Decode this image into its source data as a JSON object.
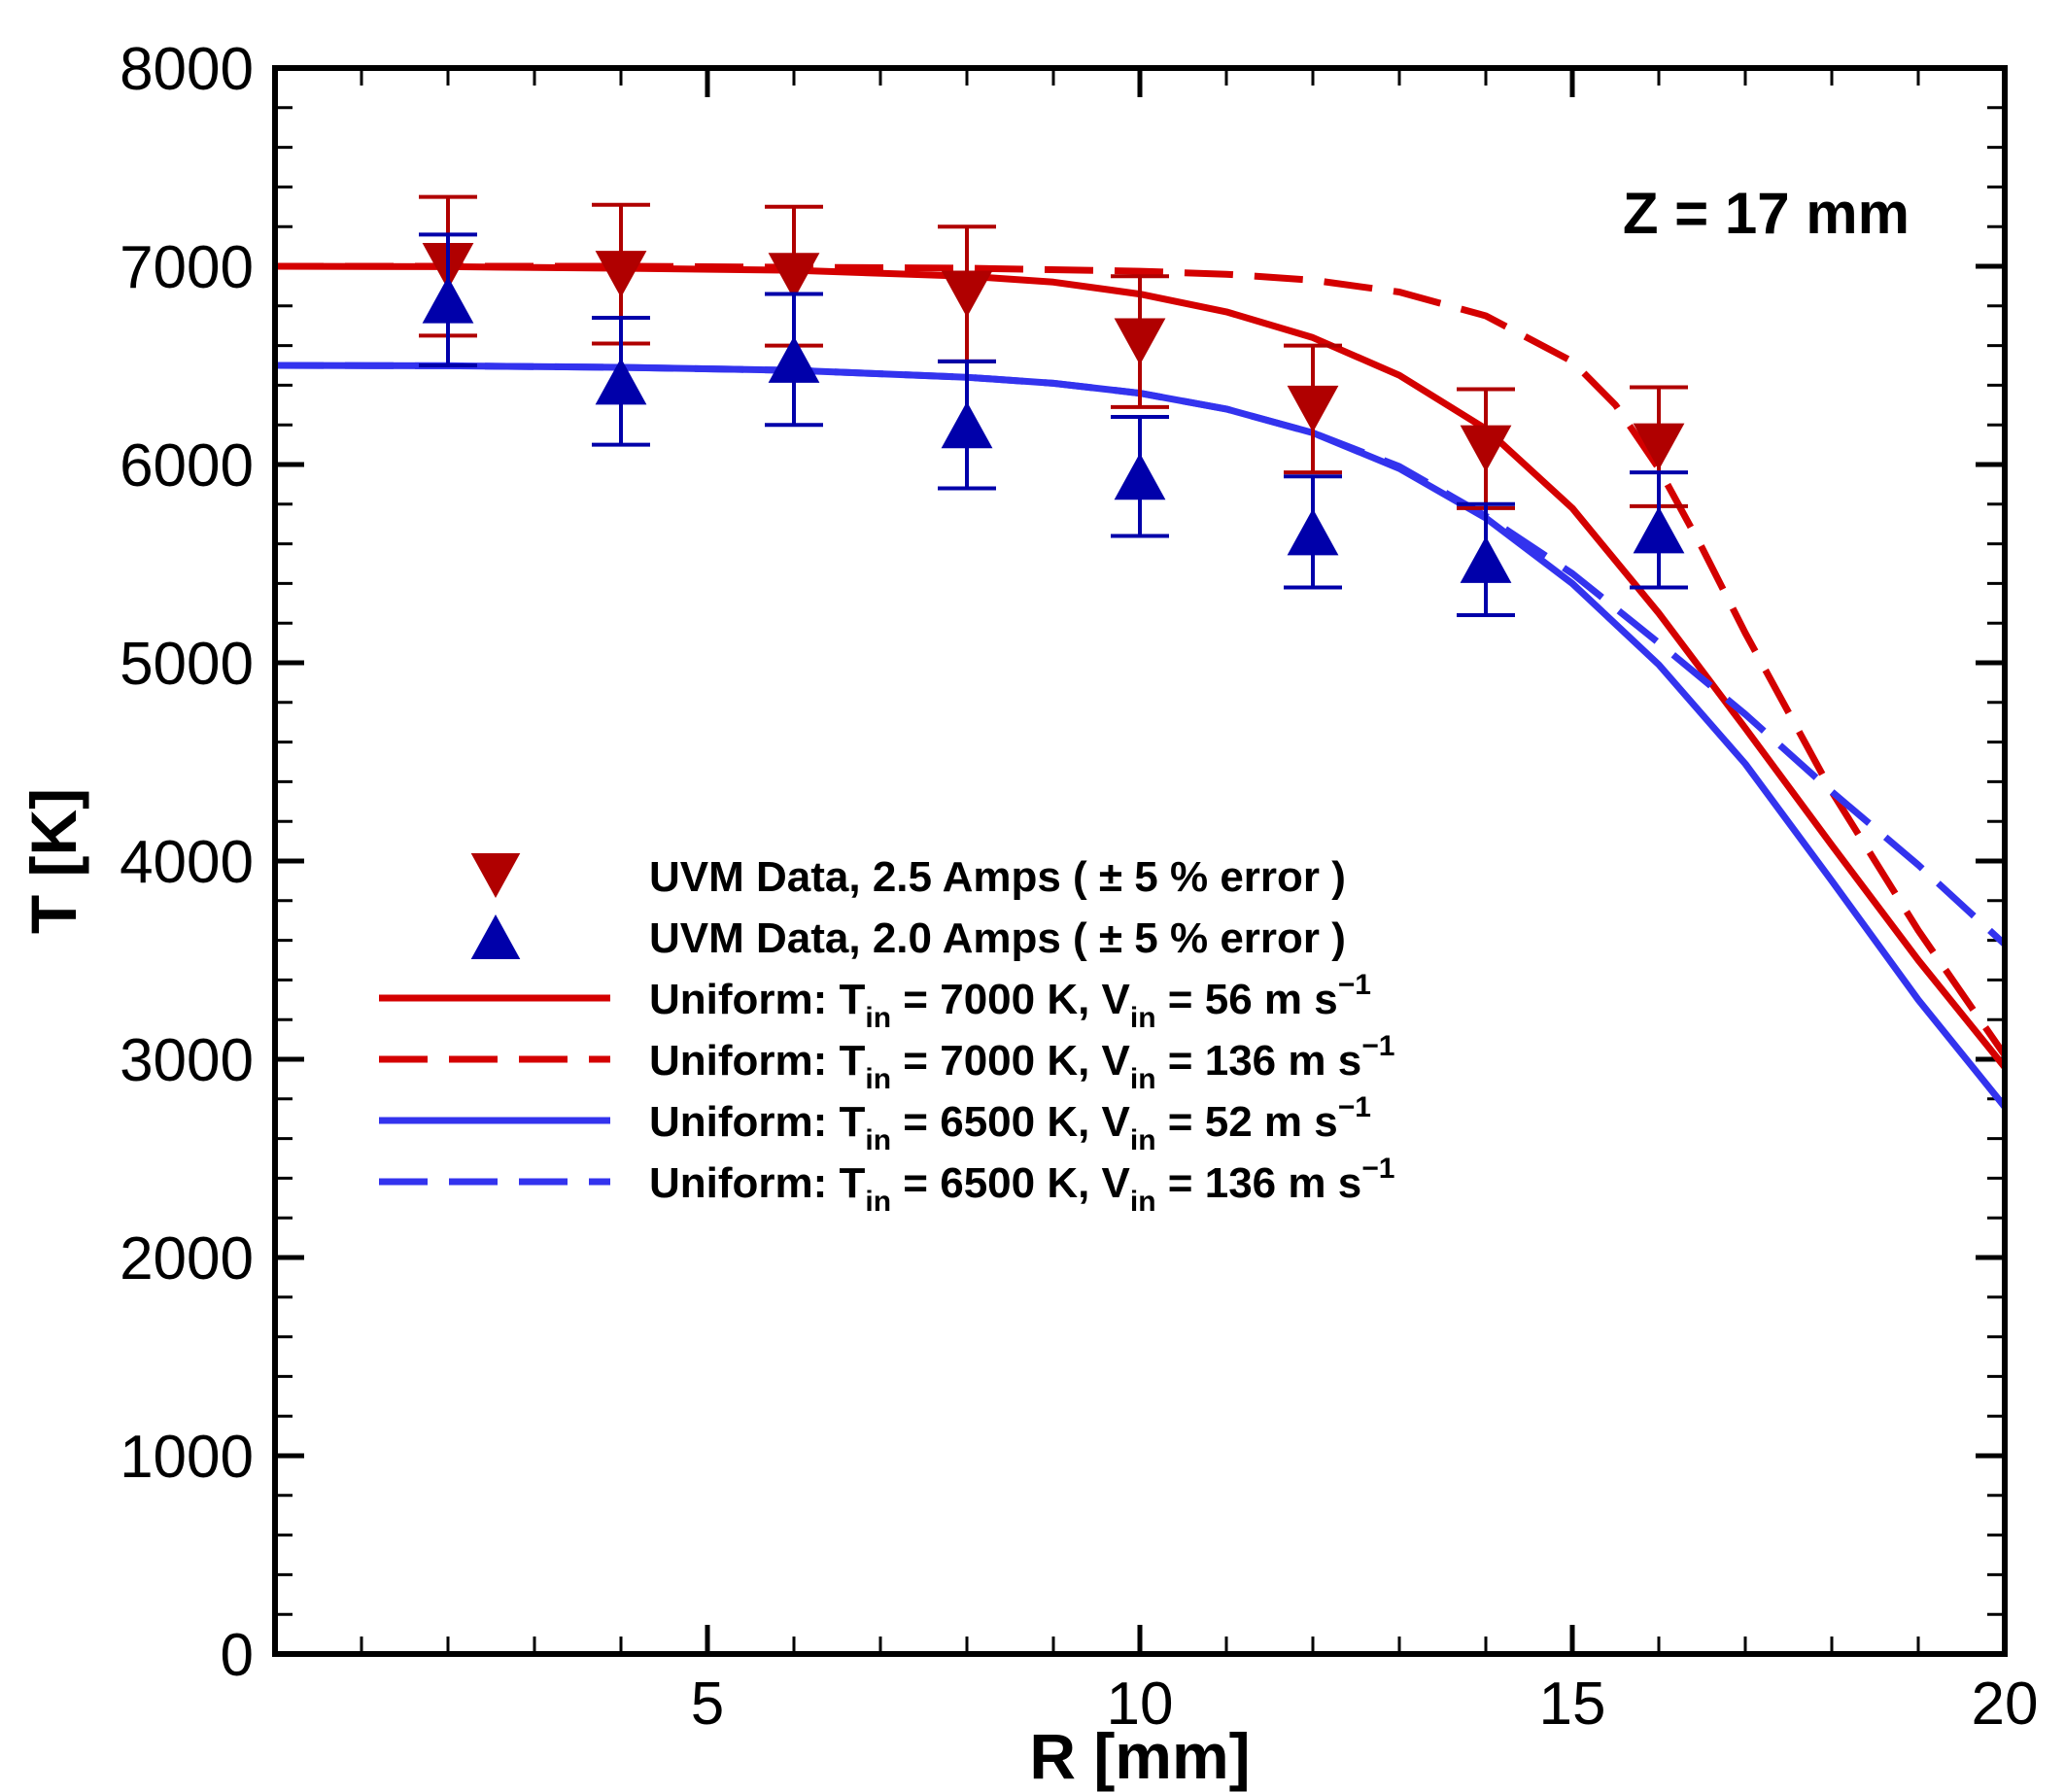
{
  "chart_data": {
    "type": "scatter+line",
    "annotation": "Z = 17 mm",
    "xlabel": "R [mm]",
    "ylabel": "T [K]",
    "xlim": [
      0,
      20
    ],
    "ylim": [
      0,
      8000
    ],
    "xticks": [
      5,
      10,
      15,
      20
    ],
    "yticks": [
      0,
      1000,
      2000,
      3000,
      4000,
      5000,
      6000,
      7000,
      8000
    ],
    "x_minor_step": 1,
    "y_minor_step": 200,
    "grid": false,
    "legend_position": "center-left",
    "colors": {
      "data_25": "#b00000",
      "data_20": "#0000aa",
      "red_line": "#d40000",
      "blue_line": "#3333ee"
    },
    "series": [
      {
        "name": "UVM Data, 2.5 Amps ( ± 5 % error )",
        "legend": {
          "base": "UVM Data, 2.5 Amps ( ± 5 % error )"
        },
        "kind": "marker",
        "marker": "triangle-down",
        "color_key": "data_25",
        "x": [
          2,
          4,
          6,
          8,
          10,
          12,
          14,
          16
        ],
        "y": [
          7000,
          6960,
          6950,
          6860,
          6620,
          6280,
          6080,
          6090
        ],
        "err": [
          350,
          350,
          350,
          340,
          330,
          320,
          300,
          300
        ]
      },
      {
        "name": "UVM Data, 2.0 Amps ( ± 5 % error )",
        "legend": {
          "base": "UVM Data, 2.0 Amps ( ± 5 % error )"
        },
        "kind": "marker",
        "marker": "triangle-up",
        "color_key": "data_20",
        "x": [
          2,
          4,
          6,
          8,
          10,
          12,
          14,
          16
        ],
        "y": [
          6830,
          6420,
          6530,
          6200,
          5940,
          5660,
          5520,
          5670
        ],
        "err": [
          330,
          320,
          330,
          320,
          300,
          280,
          280,
          290
        ]
      },
      {
        "name": "Uniform: Tin = 7000 K, Vin = 56 m s-1",
        "legend": {
          "base": "Uniform: T",
          "sub1": "in",
          "mid": " = 7000 K, V",
          "sub2": "in",
          "tail": " = 56 m s",
          "sup": "−1"
        },
        "kind": "line",
        "dash": "solid",
        "color_key": "red_line",
        "x": [
          0,
          2,
          4,
          6,
          8,
          9,
          10,
          11,
          12,
          13,
          14,
          15,
          16,
          17,
          18,
          19,
          20
        ],
        "y": [
          7000,
          6998,
          6990,
          6980,
          6950,
          6920,
          6860,
          6770,
          6640,
          6450,
          6180,
          5780,
          5250,
          4670,
          4080,
          3500,
          2960
        ]
      },
      {
        "name": "Uniform: Tin = 7000 K, Vin = 136 m s-1",
        "legend": {
          "base": "Uniform: T",
          "sub1": "in",
          "mid": " = 7000 K, V",
          "sub2": "in",
          "tail": " = 136 m s",
          "sup": "−1"
        },
        "kind": "line",
        "dash": "dashed",
        "color_key": "red_line",
        "x": [
          0,
          2,
          4,
          6,
          8,
          10,
          11,
          12,
          13,
          14,
          15,
          15.5,
          16,
          16.5,
          17,
          18,
          19,
          20
        ],
        "y": [
          7000,
          7000,
          7000,
          6995,
          6990,
          6975,
          6960,
          6930,
          6870,
          6750,
          6520,
          6300,
          5980,
          5580,
          5150,
          4350,
          3650,
          3020
        ]
      },
      {
        "name": "Uniform: Tin = 6500 K, Vin = 52 m s-1",
        "legend": {
          "base": "Uniform: T",
          "sub1": "in",
          "mid": " = 6500 K, V",
          "sub2": "in",
          "tail": " = 52 m s",
          "sup": "−1"
        },
        "kind": "line",
        "dash": "solid",
        "color_key": "blue_line",
        "x": [
          0,
          2,
          4,
          6,
          8,
          9,
          10,
          11,
          12,
          13,
          14,
          15,
          16,
          17,
          18,
          19,
          20
        ],
        "y": [
          6500,
          6498,
          6490,
          6475,
          6440,
          6410,
          6360,
          6280,
          6160,
          5980,
          5730,
          5400,
          4990,
          4490,
          3900,
          3300,
          2760
        ]
      },
      {
        "name": "Uniform: Tin = 6500 K, Vin = 136 m s-1",
        "legend": {
          "base": "Uniform: T",
          "sub1": "in",
          "mid": " = 6500 K, V",
          "sub2": "in",
          "tail": " = 136 m s",
          "sup": "−1"
        },
        "kind": "line",
        "dash": "dashed",
        "color_key": "blue_line",
        "x": [
          0,
          2,
          4,
          6,
          8,
          9,
          10,
          11,
          12,
          13,
          14,
          15,
          16,
          17,
          18,
          19,
          20
        ],
        "y": [
          6500,
          6498,
          6490,
          6475,
          6440,
          6410,
          6360,
          6280,
          6160,
          5990,
          5740,
          5450,
          5100,
          4740,
          4350,
          3980,
          3580
        ]
      }
    ]
  }
}
